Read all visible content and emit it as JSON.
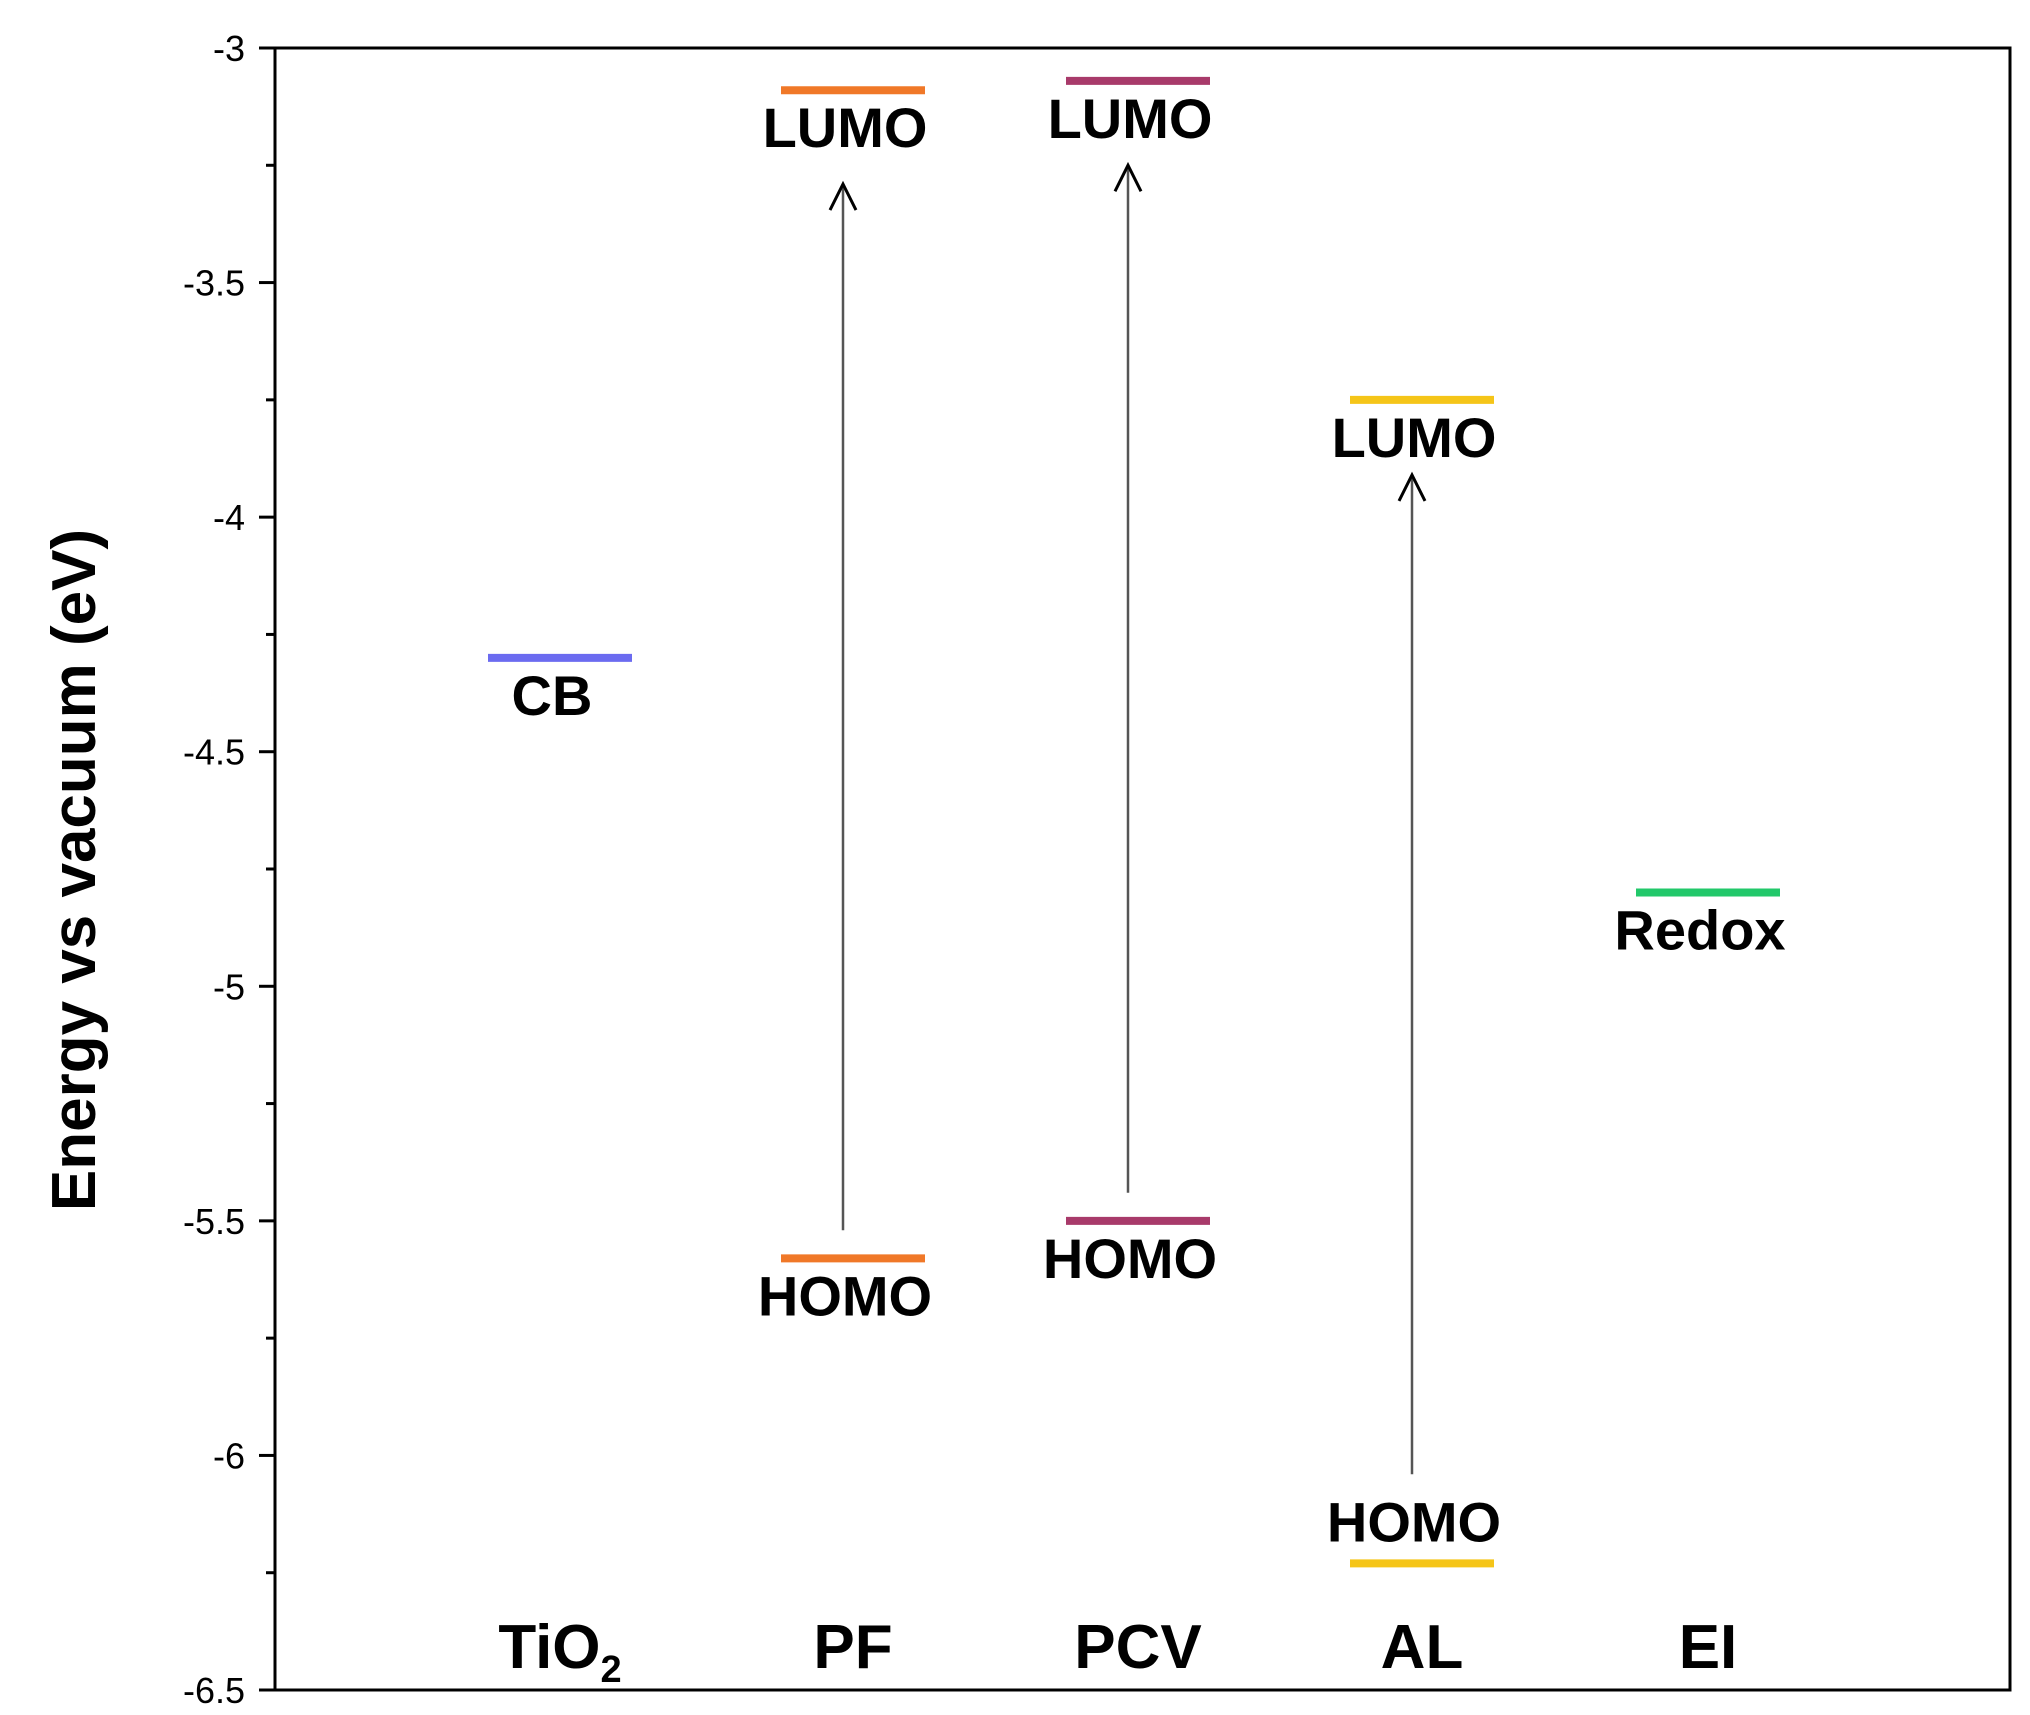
{
  "chart_data": {
    "type": "energy-level-diagram",
    "ylabel": "Energy vs vacuum (eV)",
    "ylim": [
      -6.5,
      -3
    ],
    "yticks": [
      {
        "value": -3,
        "label": "-3"
      },
      {
        "value": -3.5,
        "label": "-3.5"
      },
      {
        "value": -4,
        "label": "-4"
      },
      {
        "value": -4.5,
        "label": "-4.5"
      },
      {
        "value": -5,
        "label": "-5"
      },
      {
        "value": -5.5,
        "label": "-5.5"
      },
      {
        "value": -6,
        "label": "-6"
      },
      {
        "value": -6.5,
        "label": "-6.5"
      }
    ],
    "categories": [
      {
        "key": "tio2",
        "label": "TiO",
        "sub": "2"
      },
      {
        "key": "pf",
        "label": "PF",
        "sub": ""
      },
      {
        "key": "pcv",
        "label": "PCV",
        "sub": ""
      },
      {
        "key": "al",
        "label": "AL",
        "sub": ""
      },
      {
        "key": "ei",
        "label": "EI",
        "sub": ""
      }
    ],
    "levels": [
      {
        "category": "tio2",
        "name": "CB",
        "value": -4.3,
        "color": "#6B6BF0",
        "label_pos": "below"
      },
      {
        "category": "pf",
        "name": "LUMO",
        "value": -3.09,
        "color": "#F07828",
        "label_pos": "below"
      },
      {
        "category": "pf",
        "name": "HOMO",
        "value": -5.58,
        "color": "#F07828",
        "label_pos": "below"
      },
      {
        "category": "pcv",
        "name": "LUMO",
        "value": -3.07,
        "color": "#A83A6A",
        "label_pos": "below"
      },
      {
        "category": "pcv",
        "name": "HOMO",
        "value": -5.5,
        "color": "#A83A6A",
        "label_pos": "below"
      },
      {
        "category": "al",
        "name": "LUMO",
        "value": -3.75,
        "color": "#F5C518",
        "label_pos": "below"
      },
      {
        "category": "al",
        "name": "HOMO",
        "value": -6.23,
        "color": "#F5C518",
        "label_pos": "above"
      },
      {
        "category": "ei",
        "name": "Redox",
        "value": -4.8,
        "color": "#22C86A",
        "label_pos": "below"
      }
    ],
    "transitions": [
      {
        "category": "pf",
        "from": -5.52,
        "to": -3.29
      },
      {
        "category": "pcv",
        "from": -5.44,
        "to": -3.25
      },
      {
        "category": "al",
        "from": -6.04,
        "to": -3.91
      }
    ],
    "grid": false,
    "legend": "none"
  }
}
